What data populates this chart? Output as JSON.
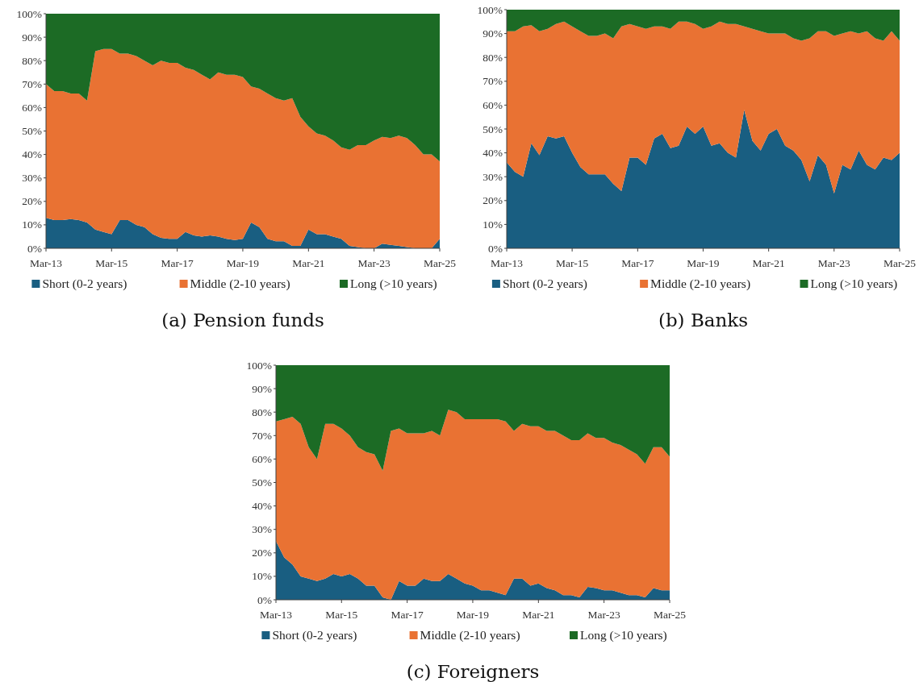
{
  "chart_data": [
    {
      "type": "area",
      "title": "(a) Pension funds",
      "stacked": true,
      "legend": "bottom",
      "x": [
        "2013-03",
        "2013-06",
        "2013-09",
        "2013-12",
        "2014-03",
        "2014-06",
        "2014-09",
        "2014-12",
        "2015-03",
        "2015-06",
        "2015-09",
        "2015-12",
        "2016-03",
        "2016-06",
        "2016-09",
        "2016-12",
        "2017-03",
        "2017-06",
        "2017-09",
        "2017-12",
        "2018-03",
        "2018-06",
        "2018-09",
        "2018-12",
        "2019-03",
        "2019-06",
        "2019-09",
        "2019-12",
        "2020-03",
        "2020-06",
        "2020-09",
        "2020-12",
        "2021-03",
        "2021-06",
        "2021-09",
        "2021-12",
        "2022-03",
        "2022-06",
        "2022-09",
        "2022-12",
        "2023-03",
        "2023-06",
        "2023-09",
        "2023-12",
        "2024-03",
        "2024-06",
        "2024-09",
        "2024-12",
        "2025-03"
      ],
      "xlim": [
        "2013-03",
        "2025-03"
      ],
      "xticks": [
        {
          "value": "2013-03",
          "label": "Mar-13"
        },
        {
          "value": "2015-03",
          "label": "Mar-15"
        },
        {
          "value": "2017-03",
          "label": "Mar-17"
        },
        {
          "value": "2019-03",
          "label": "Mar-19"
        },
        {
          "value": "2021-03",
          "label": "Mar-21"
        },
        {
          "value": "2023-03",
          "label": "Mar-23"
        },
        {
          "value": "2025-03",
          "label": "Mar-25"
        }
      ],
      "ylim": [
        0,
        100
      ],
      "yticks": [
        {
          "value": 0,
          "label": "0%"
        },
        {
          "value": 10,
          "label": "10%"
        },
        {
          "value": 20,
          "label": "20%"
        },
        {
          "value": 30,
          "label": "30%"
        },
        {
          "value": 40,
          "label": "40%"
        },
        {
          "value": 50,
          "label": "50%"
        },
        {
          "value": 60,
          "label": "60%"
        },
        {
          "value": 70,
          "label": "70%"
        },
        {
          "value": 80,
          "label": "80%"
        },
        {
          "value": 90,
          "label": "90%"
        },
        {
          "value": 100,
          "label": "100%"
        }
      ],
      "series": [
        {
          "name": "Short (0-2 years)",
          "color": "#195e81",
          "values": [
            13,
            12,
            12,
            12.5,
            12,
            11,
            8,
            7,
            6,
            12,
            12,
            10,
            9,
            6,
            4.5,
            4,
            4,
            7,
            5.5,
            5,
            5.5,
            5,
            4,
            3.5,
            4,
            11,
            9,
            4,
            3,
            3,
            1,
            1,
            8,
            6,
            6,
            5,
            4,
            1,
            0.5,
            0,
            0,
            2,
            1.5,
            1,
            0.5,
            0,
            0,
            0,
            4
          ]
        },
        {
          "name": "Middle (2-10 years)",
          "color": "#e97233",
          "values": [
            57,
            55,
            55,
            53.5,
            54,
            52,
            76,
            78,
            79,
            71,
            71,
            72,
            71,
            72,
            75.5,
            75,
            75,
            70,
            70.5,
            69,
            66.5,
            70,
            70,
            70.5,
            69,
            58,
            59,
            62,
            61,
            60,
            63,
            55,
            44,
            43,
            42,
            41,
            39,
            41,
            43.5,
            44,
            46,
            45.5,
            45.5,
            47,
            46.5,
            44,
            40,
            40,
            33
          ]
        },
        {
          "name": "Long (>10 years)",
          "color": "#1c6b25",
          "values": [
            30,
            33,
            33,
            34,
            34,
            37,
            16,
            15,
            15,
            17,
            17,
            18,
            20,
            22,
            20,
            21,
            21,
            23,
            24,
            26,
            28,
            25,
            26,
            26,
            27,
            31,
            32,
            34,
            36,
            37,
            36,
            44,
            48,
            51,
            52,
            54,
            57,
            58,
            56,
            56,
            54,
            52.5,
            53,
            52,
            53,
            56,
            60,
            60,
            63
          ]
        }
      ]
    },
    {
      "type": "area",
      "title": "(b) Banks",
      "stacked": true,
      "legend": "bottom",
      "x": [
        "2013-03",
        "2013-06",
        "2013-09",
        "2013-12",
        "2014-03",
        "2014-06",
        "2014-09",
        "2014-12",
        "2015-03",
        "2015-06",
        "2015-09",
        "2015-12",
        "2016-03",
        "2016-06",
        "2016-09",
        "2016-12",
        "2017-03",
        "2017-06",
        "2017-09",
        "2017-12",
        "2018-03",
        "2018-06",
        "2018-09",
        "2018-12",
        "2019-03",
        "2019-06",
        "2019-09",
        "2019-12",
        "2020-03",
        "2020-06",
        "2020-09",
        "2020-12",
        "2021-03",
        "2021-06",
        "2021-09",
        "2021-12",
        "2022-03",
        "2022-06",
        "2022-09",
        "2022-12",
        "2023-03",
        "2023-06",
        "2023-09",
        "2023-12",
        "2024-03",
        "2024-06",
        "2024-09",
        "2024-12",
        "2025-03"
      ],
      "xlim": [
        "2013-03",
        "2025-03"
      ],
      "xticks": [
        {
          "value": "2013-03",
          "label": "Mar-13"
        },
        {
          "value": "2015-03",
          "label": "Mar-15"
        },
        {
          "value": "2017-03",
          "label": "Mar-17"
        },
        {
          "value": "2019-03",
          "label": "Mar-19"
        },
        {
          "value": "2021-03",
          "label": "Mar-21"
        },
        {
          "value": "2023-03",
          "label": "Mar-23"
        },
        {
          "value": "2025-03",
          "label": "Mar-25"
        }
      ],
      "ylim": [
        0,
        100
      ],
      "yticks": [
        {
          "value": 0,
          "label": "0%"
        },
        {
          "value": 10,
          "label": "10%"
        },
        {
          "value": 20,
          "label": "20%"
        },
        {
          "value": 30,
          "label": "30%"
        },
        {
          "value": 40,
          "label": "40%"
        },
        {
          "value": 50,
          "label": "50%"
        },
        {
          "value": 60,
          "label": "60%"
        },
        {
          "value": 70,
          "label": "70%"
        },
        {
          "value": 80,
          "label": "80%"
        },
        {
          "value": 90,
          "label": "90%"
        },
        {
          "value": 100,
          "label": "100%"
        }
      ],
      "series": [
        {
          "name": "Short (0-2 years)",
          "color": "#195e81",
          "values": [
            36,
            32,
            30,
            44,
            39,
            47,
            46,
            47,
            40,
            34,
            31,
            31,
            31,
            27,
            24,
            38,
            38,
            35,
            46,
            48,
            42,
            43,
            51,
            48,
            51,
            43,
            44,
            40,
            38,
            58,
            45,
            41,
            48,
            50,
            43,
            41,
            37,
            28,
            39,
            35,
            23,
            35,
            33,
            41,
            35,
            33,
            38,
            37,
            40
          ]
        },
        {
          "name": "Middle (2-10 years)",
          "color": "#e97233",
          "values": [
            55,
            59,
            63,
            49.5,
            52,
            45,
            48,
            48,
            53,
            57,
            58,
            58,
            59,
            61,
            69,
            56,
            55,
            57,
            47,
            45,
            50,
            52,
            44,
            46,
            41,
            50,
            51,
            54,
            56,
            35,
            47,
            50,
            42,
            40,
            47,
            47,
            50,
            60,
            52,
            56,
            66,
            55,
            58,
            49,
            56,
            55,
            49,
            54,
            47
          ]
        },
        {
          "name": "Long (>10 years)",
          "color": "#1c6b25",
          "values": [
            9,
            9,
            7,
            6.5,
            9,
            8,
            6,
            5,
            7,
            9,
            11,
            11,
            10,
            12,
            7,
            6,
            7,
            8,
            7,
            7,
            8,
            5,
            5,
            6,
            8,
            7,
            5,
            6,
            6,
            7,
            8,
            9,
            10,
            10,
            10,
            12,
            13,
            12,
            9,
            9,
            11,
            10,
            9,
            10,
            9,
            12,
            13,
            9,
            13
          ]
        }
      ]
    },
    {
      "type": "area",
      "title": "(c) Foreigners",
      "stacked": true,
      "legend": "bottom",
      "x": [
        "2013-03",
        "2013-06",
        "2013-09",
        "2013-12",
        "2014-03",
        "2014-06",
        "2014-09",
        "2014-12",
        "2015-03",
        "2015-06",
        "2015-09",
        "2015-12",
        "2016-03",
        "2016-06",
        "2016-09",
        "2016-12",
        "2017-03",
        "2017-06",
        "2017-09",
        "2017-12",
        "2018-03",
        "2018-06",
        "2018-09",
        "2018-12",
        "2019-03",
        "2019-06",
        "2019-09",
        "2019-12",
        "2020-03",
        "2020-06",
        "2020-09",
        "2020-12",
        "2021-03",
        "2021-06",
        "2021-09",
        "2021-12",
        "2022-03",
        "2022-06",
        "2022-09",
        "2022-12",
        "2023-03",
        "2023-06",
        "2023-09",
        "2023-12",
        "2024-03",
        "2024-06",
        "2024-09",
        "2024-12",
        "2025-03"
      ],
      "xlim": [
        "2013-03",
        "2025-03"
      ],
      "xticks": [
        {
          "value": "2013-03",
          "label": "Mar-13"
        },
        {
          "value": "2015-03",
          "label": "Mar-15"
        },
        {
          "value": "2017-03",
          "label": "Mar-17"
        },
        {
          "value": "2019-03",
          "label": "Mar-19"
        },
        {
          "value": "2021-03",
          "label": "Mar-21"
        },
        {
          "value": "2023-03",
          "label": "Mar-23"
        },
        {
          "value": "2025-03",
          "label": "Mar-25"
        }
      ],
      "ylim": [
        0,
        100
      ],
      "yticks": [
        {
          "value": 0,
          "label": "0%"
        },
        {
          "value": 10,
          "label": "10%"
        },
        {
          "value": 20,
          "label": "20%"
        },
        {
          "value": 30,
          "label": "30%"
        },
        {
          "value": 40,
          "label": "40%"
        },
        {
          "value": 50,
          "label": "50%"
        },
        {
          "value": 60,
          "label": "60%"
        },
        {
          "value": 70,
          "label": "70%"
        },
        {
          "value": 80,
          "label": "80%"
        },
        {
          "value": 90,
          "label": "90%"
        },
        {
          "value": 100,
          "label": "100%"
        }
      ],
      "series": [
        {
          "name": "Short (0-2 years)",
          "color": "#195e81",
          "values": [
            25,
            18,
            15,
            10,
            9,
            8,
            9,
            11,
            10,
            11,
            9,
            6,
            6,
            1,
            0,
            8,
            6,
            6,
            9,
            8,
            8,
            11,
            9,
            7,
            6,
            4,
            4,
            3,
            2,
            9,
            9,
            6,
            7,
            5,
            4,
            2,
            2,
            1,
            5.5,
            5,
            4,
            4,
            3,
            2,
            2,
            1,
            5,
            4,
            4
          ]
        },
        {
          "name": "Middle (2-10 years)",
          "color": "#e97233",
          "values": [
            51,
            59,
            63,
            65,
            56,
            52,
            66,
            64,
            63,
            59,
            56,
            57,
            56,
            54,
            72,
            65,
            65,
            65,
            62,
            64,
            62,
            70,
            71,
            70,
            71,
            73,
            73,
            74,
            74,
            63,
            66,
            68,
            67,
            67,
            68,
            68,
            66,
            67,
            65.5,
            64,
            65,
            63,
            63,
            62,
            60,
            57,
            60,
            61,
            57
          ]
        },
        {
          "name": "Long (>10 years)",
          "color": "#1c6b25",
          "values": [
            24,
            23,
            22,
            25,
            35,
            40,
            25,
            25,
            27,
            30,
            35,
            37,
            38,
            45,
            28,
            27,
            29,
            29,
            29,
            28,
            30,
            19,
            20,
            23,
            23,
            23,
            23,
            23,
            24,
            28,
            25,
            26,
            26,
            28,
            28,
            30,
            32,
            32,
            29,
            31,
            31,
            33,
            34,
            36,
            38,
            42,
            35,
            35,
            39
          ]
        }
      ]
    }
  ]
}
